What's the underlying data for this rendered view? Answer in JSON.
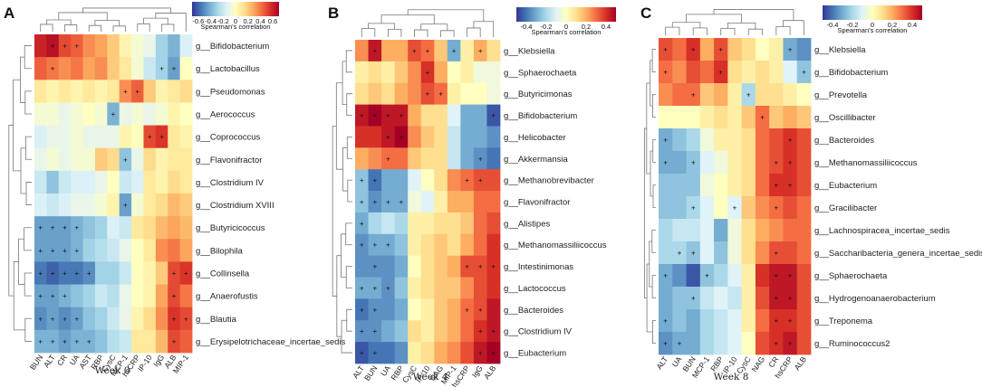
{
  "figure": {
    "legend_title": "Spearman's correlation"
  },
  "palette": [
    "#313695",
    "#4575b4",
    "#74add1",
    "#abd9e9",
    "#e0f3f8",
    "#ffffbf",
    "#fee090",
    "#fdae61",
    "#f46d43",
    "#d73027",
    "#a50026"
  ],
  "chart_data": [
    {
      "type": "heatmap",
      "panel": "A",
      "title": "Week 0",
      "legend_ticks": [
        "-0.6",
        "-0.4",
        "-0.2",
        "0",
        "0.2",
        "0.4",
        "0.6"
      ],
      "legend_range": [
        -0.7,
        0.7
      ],
      "columns": [
        "BUN",
        "ALT",
        "CR",
        "UA",
        "AST",
        "RBP",
        "CysC",
        "MCP-1",
        "hsCRP",
        "IP-10",
        "IgG",
        "ALB",
        "MIP-1"
      ],
      "rows": [
        "g__Bifidobacterium",
        "g__Lactobacillus",
        "g__Pseudomonas",
        "g__Aerococcus",
        "g__Coprococcus",
        "g__Flavonifractor",
        "g__Clostridium IV",
        "g__Clostridium XVIII",
        "g__Butyricicoccus",
        "g__Bilophila",
        "g__Collinsella",
        "g__Anaerofustis",
        "g__Blautia",
        "g__Erysipelotrichaceae_incertae_sedis"
      ],
      "values": [
        [
          0.6,
          0.65,
          0.5,
          0.45,
          0.35,
          0.3,
          0.2,
          0.05,
          -0.05,
          -0.1,
          -0.3,
          -0.4,
          -0.15
        ],
        [
          0.45,
          0.4,
          0.35,
          0.4,
          0.3,
          0.35,
          0.2,
          0.1,
          -0.05,
          -0.2,
          -0.3,
          -0.45,
          0.0
        ],
        [
          0.1,
          0.05,
          0.1,
          0.05,
          0.1,
          0.05,
          0.1,
          0.35,
          0.45,
          0.2,
          0.05,
          0.1,
          0.15
        ],
        [
          -0.05,
          -0.05,
          -0.1,
          -0.05,
          0.0,
          -0.05,
          -0.4,
          -0.1,
          -0.05,
          -0.1,
          -0.05,
          0.05,
          0.0
        ],
        [
          -0.15,
          -0.1,
          -0.1,
          -0.05,
          -0.1,
          -0.1,
          -0.1,
          0.05,
          0.0,
          0.5,
          0.55,
          0.1,
          0.05
        ],
        [
          -0.1,
          -0.05,
          -0.1,
          -0.05,
          -0.05,
          0.2,
          0.15,
          -0.35,
          -0.1,
          0.15,
          0.05,
          0.1,
          0.1
        ],
        [
          -0.2,
          -0.35,
          -0.2,
          -0.15,
          -0.15,
          -0.1,
          0.0,
          -0.2,
          -0.15,
          0.1,
          0.05,
          0.15,
          0.1
        ],
        [
          -0.15,
          -0.2,
          -0.15,
          -0.1,
          -0.1,
          -0.05,
          0.05,
          -0.45,
          -0.05,
          0.1,
          0.15,
          0.25,
          0.2
        ],
        [
          -0.45,
          -0.45,
          -0.45,
          -0.4,
          -0.35,
          -0.3,
          -0.15,
          -0.2,
          0.1,
          0.15,
          0.25,
          0.3,
          0.25
        ],
        [
          -0.45,
          -0.45,
          -0.45,
          -0.4,
          -0.3,
          -0.25,
          -0.2,
          -0.1,
          0.0,
          0.1,
          0.35,
          0.4,
          0.3
        ],
        [
          -0.55,
          -0.6,
          -0.55,
          -0.55,
          -0.5,
          -0.3,
          -0.3,
          -0.2,
          0.0,
          0.05,
          0.2,
          0.5,
          0.55
        ],
        [
          -0.45,
          -0.45,
          -0.4,
          -0.35,
          -0.3,
          -0.2,
          -0.25,
          -0.1,
          0.0,
          0.05,
          0.3,
          0.5,
          0.4
        ],
        [
          -0.5,
          -0.45,
          -0.5,
          -0.45,
          -0.35,
          -0.3,
          -0.2,
          -0.1,
          0.05,
          0.15,
          0.35,
          0.55,
          0.5
        ],
        [
          -0.4,
          -0.4,
          -0.45,
          -0.4,
          -0.4,
          -0.35,
          -0.25,
          -0.2,
          0.1,
          0.1,
          0.25,
          0.5,
          0.45
        ]
      ],
      "significant": [
        [
          0,
          1
        ],
        [
          0,
          2
        ],
        [
          0,
          3
        ],
        [
          1,
          1
        ],
        [
          1,
          10
        ],
        [
          1,
          11
        ],
        [
          2,
          7
        ],
        [
          2,
          8
        ],
        [
          3,
          6
        ],
        [
          4,
          9
        ],
        [
          4,
          10
        ],
        [
          5,
          7
        ],
        [
          7,
          7
        ],
        [
          8,
          0
        ],
        [
          8,
          1
        ],
        [
          8,
          2
        ],
        [
          8,
          3
        ],
        [
          9,
          0
        ],
        [
          9,
          1
        ],
        [
          9,
          2
        ],
        [
          9,
          3
        ],
        [
          10,
          0
        ],
        [
          10,
          1
        ],
        [
          10,
          2
        ],
        [
          10,
          3
        ],
        [
          10,
          4
        ],
        [
          10,
          11
        ],
        [
          10,
          12
        ],
        [
          11,
          0
        ],
        [
          11,
          1
        ],
        [
          11,
          2
        ],
        [
          11,
          11
        ],
        [
          12,
          0
        ],
        [
          12,
          1
        ],
        [
          12,
          2
        ],
        [
          12,
          3
        ],
        [
          12,
          11
        ],
        [
          12,
          12
        ],
        [
          13,
          0
        ],
        [
          13,
          1
        ],
        [
          13,
          2
        ],
        [
          13,
          3
        ],
        [
          13,
          4
        ],
        [
          13,
          11
        ]
      ]
    },
    {
      "type": "heatmap",
      "panel": "B",
      "title": "Week 4",
      "legend_ticks": [
        "-0.4",
        "-0.2",
        "0",
        "0.2",
        "0.4"
      ],
      "legend_range": [
        -0.5,
        0.5
      ],
      "columns": [
        "ALT",
        "BUN",
        "UA",
        "RBP",
        "CysC",
        "IP-10",
        "NAG",
        "MIP-1",
        "hsCRP",
        "IgG",
        "ALB"
      ],
      "rows": [
        "g__Klebsiella",
        "g__Sphaerochaeta",
        "g__Butyricimonas",
        "g__Bifidobacterium",
        "g__Helicobacter",
        "g__Akkermansia",
        "g__Methanobrevibacter",
        "g__Flavonifractor",
        "g__Alistipes",
        "g__Methanomassiliicoccus",
        "g__Intestinimonas",
        "g__Lactococcus",
        "g__Bacteroides",
        "g__Clostridium IV",
        "g__Eubacterium"
      ],
      "values": [
        [
          0.25,
          0.45,
          0.2,
          0.2,
          0.35,
          0.3,
          0.15,
          -0.3,
          0.05,
          0.2,
          0.1
        ],
        [
          0.05,
          0.1,
          0.05,
          0.15,
          0.25,
          0.4,
          0.2,
          0.0,
          0.05,
          -0.05,
          -0.05
        ],
        [
          0.1,
          0.15,
          0.1,
          0.2,
          0.25,
          0.35,
          0.3,
          0.05,
          0.0,
          0.0,
          -0.05
        ],
        [
          0.45,
          0.5,
          0.45,
          0.45,
          0.2,
          0.1,
          0.1,
          -0.1,
          -0.3,
          -0.3,
          -0.45
        ],
        [
          0.4,
          0.4,
          0.45,
          0.5,
          0.25,
          0.15,
          0.1,
          -0.15,
          -0.3,
          -0.3,
          -0.35
        ],
        [
          0.2,
          0.25,
          0.3,
          0.3,
          0.15,
          0.1,
          0.1,
          -0.15,
          -0.3,
          -0.35,
          -0.4
        ],
        [
          -0.25,
          -0.4,
          -0.3,
          -0.3,
          -0.1,
          0.0,
          0.1,
          0.25,
          0.3,
          0.35,
          0.35
        ],
        [
          -0.25,
          -0.35,
          -0.3,
          -0.3,
          -0.05,
          -0.1,
          0.05,
          0.2,
          0.2,
          0.3,
          0.3
        ],
        [
          -0.3,
          -0.2,
          -0.15,
          -0.2,
          0.05,
          0.05,
          0.1,
          0.1,
          0.15,
          0.3,
          0.35
        ],
        [
          -0.35,
          -0.3,
          -0.3,
          -0.25,
          0.05,
          0.1,
          0.15,
          0.1,
          0.2,
          0.3,
          0.4
        ],
        [
          -0.35,
          -0.35,
          -0.35,
          -0.3,
          0.0,
          0.1,
          0.15,
          0.2,
          0.35,
          0.35,
          0.4
        ],
        [
          -0.3,
          -0.3,
          -0.35,
          -0.25,
          0.05,
          0.1,
          0.15,
          0.15,
          0.25,
          0.35,
          0.4
        ],
        [
          -0.4,
          -0.35,
          -0.35,
          -0.3,
          0.0,
          0.05,
          0.15,
          0.2,
          0.3,
          0.35,
          0.45
        ],
        [
          -0.35,
          -0.35,
          -0.3,
          -0.25,
          0.1,
          0.05,
          0.15,
          0.2,
          0.3,
          0.4,
          0.45
        ],
        [
          -0.45,
          -0.4,
          -0.4,
          -0.35,
          0.05,
          0.1,
          0.2,
          0.25,
          0.35,
          0.45,
          0.5
        ]
      ],
      "significant": [
        [
          0,
          1
        ],
        [
          0,
          4
        ],
        [
          0,
          5
        ],
        [
          0,
          7
        ],
        [
          0,
          9
        ],
        [
          1,
          5
        ],
        [
          2,
          5
        ],
        [
          2,
          6
        ],
        [
          3,
          0
        ],
        [
          3,
          1
        ],
        [
          3,
          2
        ],
        [
          3,
          3
        ],
        [
          3,
          10
        ],
        [
          4,
          2
        ],
        [
          4,
          3
        ],
        [
          5,
          2
        ],
        [
          5,
          9
        ],
        [
          6,
          0
        ],
        [
          6,
          1
        ],
        [
          6,
          8
        ],
        [
          6,
          9
        ],
        [
          7,
          0
        ],
        [
          7,
          1
        ],
        [
          7,
          2
        ],
        [
          7,
          3
        ],
        [
          8,
          0
        ],
        [
          9,
          0
        ],
        [
          9,
          1
        ],
        [
          9,
          2
        ],
        [
          10,
          1
        ],
        [
          10,
          8
        ],
        [
          10,
          9
        ],
        [
          10,
          10
        ],
        [
          11,
          0
        ],
        [
          11,
          1
        ],
        [
          11,
          2
        ],
        [
          12,
          0
        ],
        [
          12,
          1
        ],
        [
          12,
          8
        ],
        [
          12,
          9
        ],
        [
          13,
          0
        ],
        [
          13,
          1
        ],
        [
          13,
          9
        ],
        [
          13,
          10
        ],
        [
          14,
          0
        ],
        [
          14,
          1
        ],
        [
          14,
          9
        ],
        [
          14,
          10
        ]
      ]
    },
    {
      "type": "heatmap",
      "panel": "C",
      "title": "Week 8",
      "legend_ticks": [
        "-0.4",
        "-0.2",
        "0",
        "0.2",
        "0.4"
      ],
      "legend_range": [
        -0.5,
        0.5
      ],
      "columns": [
        "ALT",
        "UA",
        "BUN",
        "MCP-1",
        "RBP",
        "IP-10",
        "CysC",
        "NAG",
        "CR",
        "hsCRP",
        "ALB"
      ],
      "rows": [
        "g__Klebsiella",
        "g__Bifidobacterium",
        "g__Prevotella",
        "g__Oscillibacter",
        "g__Bacteroides",
        "g__Methanomassiliicoccus",
        "g__Eubacterium",
        "g__Gracilibacter",
        "g__Lachnospiracea_incertae_sedis",
        "g__Saccharibacteria_genera_incertae_sedis",
        "g__Sphaerochaeta",
        "g__Hydrogenoanaerobacterium",
        "g__Treponema",
        "g__Ruminococcus2"
      ],
      "values": [
        [
          0.35,
          0.3,
          0.4,
          0.2,
          0.35,
          0.15,
          0.1,
          0.0,
          0.05,
          -0.3,
          -0.35
        ],
        [
          0.3,
          0.25,
          0.35,
          0.3,
          0.4,
          0.1,
          0.05,
          0.1,
          0.05,
          -0.1,
          -0.25
        ],
        [
          0.25,
          0.3,
          0.3,
          0.15,
          0.2,
          0.05,
          -0.2,
          0.1,
          0.1,
          0.05,
          0.0
        ],
        [
          0.0,
          0.0,
          0.0,
          0.05,
          0.1,
          0.05,
          0.15,
          0.3,
          0.15,
          0.2,
          0.15
        ],
        [
          -0.3,
          -0.25,
          -0.2,
          -0.05,
          0.05,
          0.05,
          0.1,
          0.3,
          0.35,
          0.4,
          0.35
        ],
        [
          -0.3,
          -0.3,
          -0.25,
          -0.1,
          -0.05,
          0.05,
          0.1,
          0.3,
          0.35,
          0.4,
          0.35
        ],
        [
          -0.25,
          -0.25,
          -0.25,
          -0.05,
          0.0,
          0.05,
          0.1,
          0.3,
          0.4,
          0.4,
          0.35
        ],
        [
          -0.25,
          -0.25,
          -0.2,
          -0.1,
          0.0,
          -0.1,
          0.15,
          0.25,
          0.3,
          0.35,
          0.3
        ],
        [
          -0.2,
          -0.15,
          -0.15,
          -0.1,
          -0.3,
          -0.05,
          0.1,
          0.2,
          0.25,
          0.3,
          0.3
        ],
        [
          -0.2,
          -0.2,
          -0.25,
          -0.1,
          -0.25,
          -0.05,
          0.1,
          0.25,
          0.35,
          0.35,
          0.3
        ],
        [
          -0.3,
          -0.35,
          -0.45,
          -0.25,
          -0.2,
          -0.1,
          0.05,
          0.4,
          0.45,
          0.45,
          0.35
        ],
        [
          -0.3,
          -0.25,
          -0.25,
          -0.15,
          -0.1,
          -0.15,
          0.05,
          0.35,
          0.45,
          0.45,
          0.35
        ],
        [
          -0.3,
          -0.25,
          -0.3,
          -0.2,
          -0.15,
          -0.1,
          0.05,
          0.3,
          0.4,
          0.4,
          0.35
        ],
        [
          -0.35,
          -0.3,
          -0.3,
          -0.2,
          -0.15,
          -0.1,
          0.0,
          0.35,
          0.4,
          0.45,
          0.35
        ]
      ],
      "significant": [
        [
          0,
          0
        ],
        [
          0,
          2
        ],
        [
          0,
          4
        ],
        [
          0,
          9
        ],
        [
          1,
          0
        ],
        [
          1,
          4
        ],
        [
          1,
          10
        ],
        [
          2,
          2
        ],
        [
          2,
          6
        ],
        [
          3,
          7
        ],
        [
          4,
          0
        ],
        [
          4,
          9
        ],
        [
          5,
          0
        ],
        [
          5,
          2
        ],
        [
          5,
          8
        ],
        [
          5,
          9
        ],
        [
          6,
          8
        ],
        [
          6,
          9
        ],
        [
          7,
          2
        ],
        [
          7,
          5
        ],
        [
          7,
          8
        ],
        [
          9,
          1
        ],
        [
          9,
          2
        ],
        [
          9,
          8
        ],
        [
          10,
          0
        ],
        [
          10,
          3
        ],
        [
          10,
          8
        ],
        [
          10,
          9
        ],
        [
          11,
          2
        ],
        [
          11,
          8
        ],
        [
          11,
          9
        ],
        [
          12,
          0
        ],
        [
          12,
          8
        ],
        [
          12,
          9
        ],
        [
          13,
          0
        ],
        [
          13,
          1
        ],
        [
          13,
          8
        ],
        [
          13,
          9
        ]
      ]
    }
  ]
}
